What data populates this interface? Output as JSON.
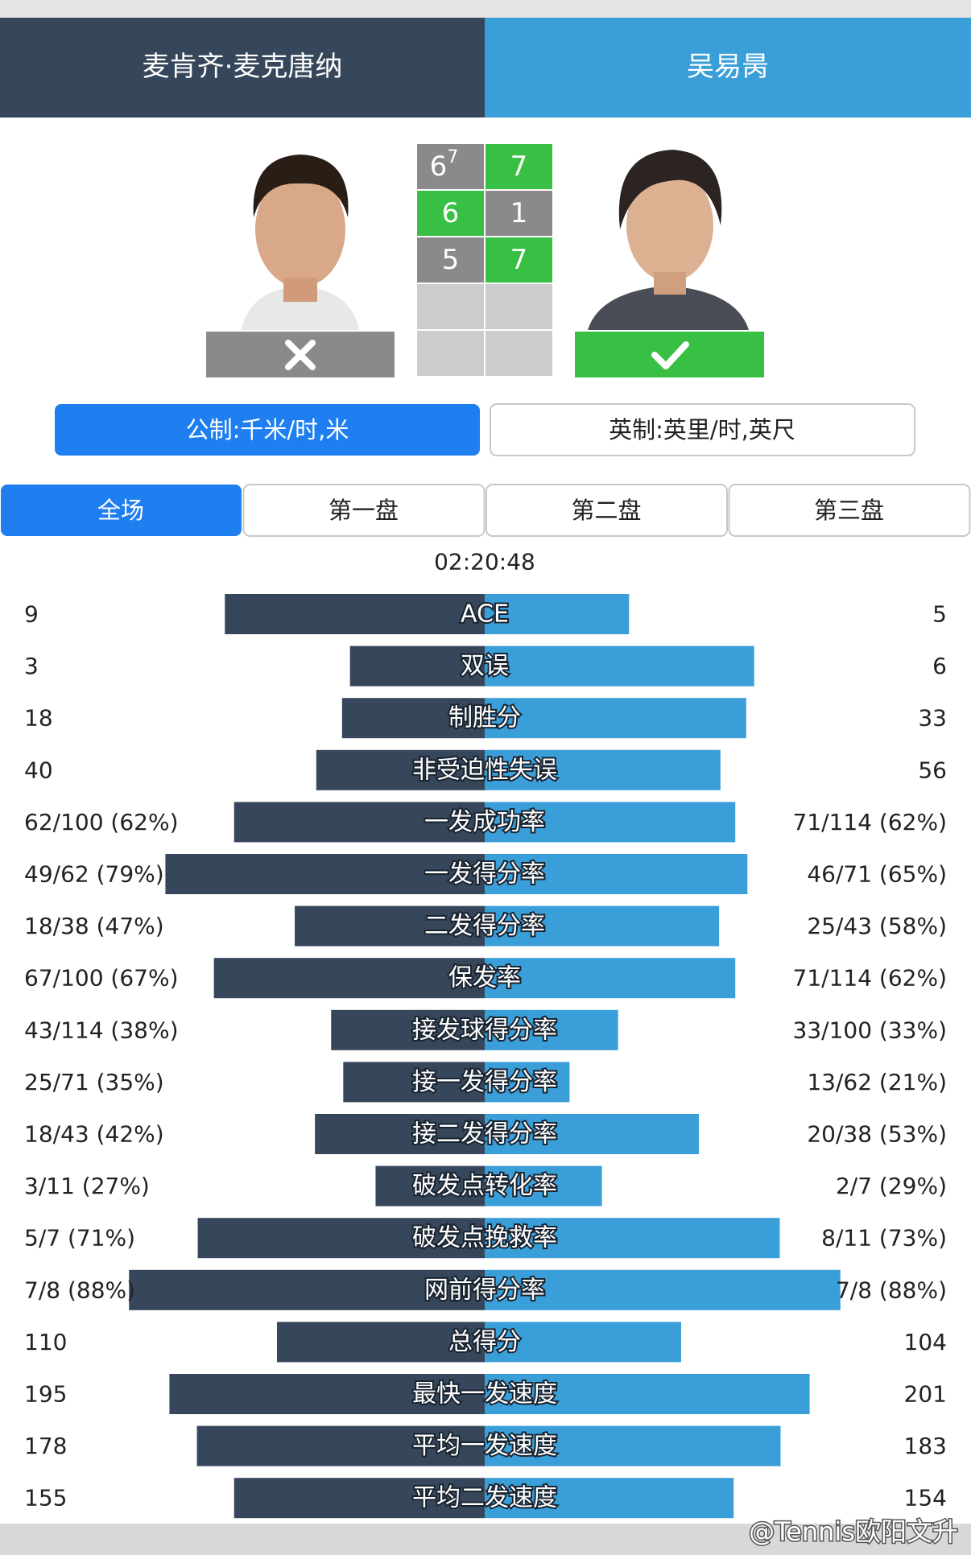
{
  "header": {
    "player1": "麦肯齐·麦克唐纳",
    "player2": "吴易昺"
  },
  "sets": [
    {
      "p1": 6,
      "p1_tb": 7,
      "p2": 7
    },
    {
      "p1": 6,
      "p2": 1
    },
    {
      "p1": 5,
      "p2": 7
    }
  ],
  "units": [
    "公制:千米/时,米",
    "英制:英里/时,英尺"
  ],
  "tabs": [
    "全场",
    "第一盘",
    "第二盘",
    "第三盘"
  ],
  "duration": "02:20:48",
  "stats": {
    "speed_max": 250,
    "rows": [
      {
        "name": "ACE",
        "scale": "share",
        "left": 9,
        "right": 5
      },
      {
        "name": "双误",
        "scale": "share",
        "left": 3,
        "right": 6
      },
      {
        "name": "制胜分",
        "scale": "share",
        "left": 18,
        "right": 33
      },
      {
        "name": "非受迫性失误",
        "scale": "share",
        "left": 40,
        "right": 56
      },
      {
        "name": "一发成功率",
        "scale": "percent",
        "left": {
          "value": 62,
          "label": "62/100 (62%)"
        },
        "right": {
          "value": 62,
          "label": "71/114 (62%)"
        }
      },
      {
        "name": "一发得分率",
        "scale": "percent",
        "left": {
          "value": 79,
          "label": "49/62 (79%)"
        },
        "right": {
          "value": 65,
          "label": "46/71 (65%)"
        }
      },
      {
        "name": "二发得分率",
        "scale": "percent",
        "left": {
          "value": 47,
          "label": "18/38 (47%)"
        },
        "right": {
          "value": 58,
          "label": "25/43 (58%)"
        }
      },
      {
        "name": "保发率",
        "scale": "percent",
        "left": {
          "value": 67,
          "label": "67/100 (67%)"
        },
        "right": {
          "value": 62,
          "label": "71/114 (62%)"
        }
      },
      {
        "name": "接发球得分率",
        "scale": "percent",
        "left": {
          "value": 38,
          "label": "43/114 (38%)"
        },
        "right": {
          "value": 33,
          "label": "33/100 (33%)"
        }
      },
      {
        "name": "接一发得分率",
        "scale": "percent",
        "left": {
          "value": 35,
          "label": "25/71 (35%)"
        },
        "right": {
          "value": 21,
          "label": "13/62 (21%)"
        }
      },
      {
        "name": "接二发得分率",
        "scale": "percent",
        "left": {
          "value": 42,
          "label": "18/43 (42%)"
        },
        "right": {
          "value": 53,
          "label": "20/38 (53%)"
        }
      },
      {
        "name": "破发点转化率",
        "scale": "percent",
        "left": {
          "value": 27,
          "label": "3/11 (27%)"
        },
        "right": {
          "value": 29,
          "label": "2/7 (29%)"
        }
      },
      {
        "name": "破发点挽救率",
        "scale": "percent",
        "left": {
          "value": 71,
          "label": "5/7 (71%)"
        },
        "right": {
          "value": 73,
          "label": "8/11 (73%)"
        }
      },
      {
        "name": "网前得分率",
        "scale": "percent",
        "left": {
          "value": 88,
          "label": "7/8 (88%)"
        },
        "right": {
          "value": 88,
          "label": "7/8 (88%)"
        }
      },
      {
        "name": "总得分",
        "scale": "share",
        "left": 110,
        "right": 104
      },
      {
        "name": "最快一发速度",
        "scale": "speed",
        "left": 195,
        "right": 201
      },
      {
        "name": "平均一发速度",
        "scale": "speed",
        "left": 178,
        "right": 183
      },
      {
        "name": "平均二发速度",
        "scale": "speed",
        "left": 155,
        "right": 154
      }
    ]
  },
  "watermark": "@Tennis欧阳文升"
}
